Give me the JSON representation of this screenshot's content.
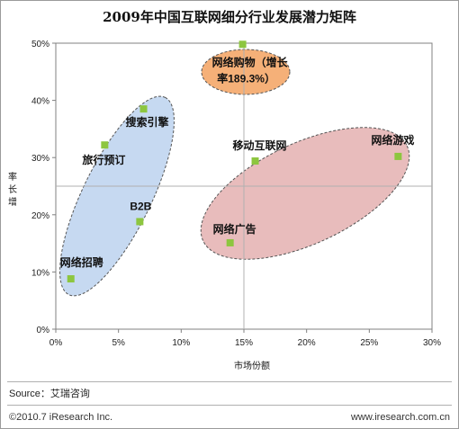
{
  "chart_data": {
    "type": "scatter",
    "title": "2009年中国互联网细分行业发展潜力矩阵",
    "xlabel": "市场份额",
    "ylabel": "增长率",
    "xlim": [
      0,
      30
    ],
    "ylim": [
      0,
      50
    ],
    "x_ticks": [
      "0%",
      "5%",
      "10%",
      "15%",
      "20%",
      "25%",
      "30%"
    ],
    "y_ticks": [
      "0%",
      "10%",
      "20%",
      "30%",
      "40%",
      "50%"
    ],
    "point_color": "#8dc63f",
    "points": [
      {
        "label": "网络招聘",
        "x": 1.2,
        "y": 8.8
      },
      {
        "label": "B2B",
        "x": 6.7,
        "y": 18.8
      },
      {
        "label": "旅行预订",
        "x": 3.9,
        "y": 32.2
      },
      {
        "label": "搜索引擎",
        "x": 7.0,
        "y": 38.5
      },
      {
        "label": "网络购物（增长率189.3%）",
        "x": 14.9,
        "y": 49.8
      },
      {
        "label": "移动互联网",
        "x": 15.9,
        "y": 29.4
      },
      {
        "label": "网络游戏",
        "x": 27.3,
        "y": 30.2
      },
      {
        "label": "网络广告",
        "x": 13.9,
        "y": 15.1
      }
    ],
    "clusters": [
      {
        "color": "#c6d9f1",
        "points": [
          "网络招聘",
          "B2B",
          "旅行预订",
          "搜索引擎"
        ]
      },
      {
        "color": "#f5b078",
        "points": [
          "网络购物（增长率189.3%）"
        ]
      },
      {
        "color": "#e8bcbc",
        "points": [
          "移动互联网",
          "网络游戏",
          "网络广告"
        ]
      }
    ]
  },
  "footer": {
    "source": "Source：艾瑞咨询",
    "copyright": "©2010.7 iResearch Inc.",
    "url": "www.iresearch.com.cn"
  }
}
